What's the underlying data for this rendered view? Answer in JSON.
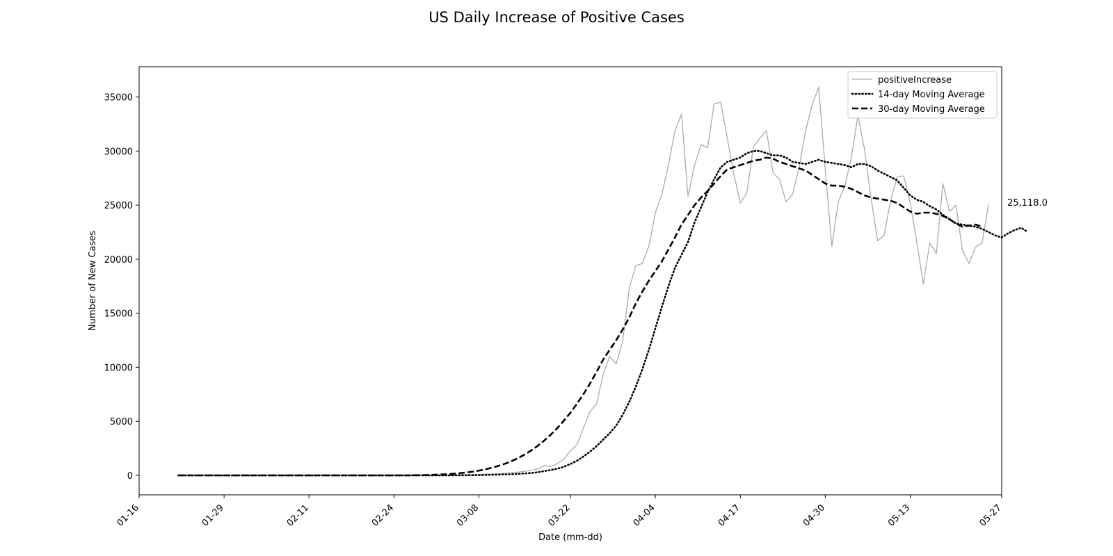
{
  "chart_data": {
    "type": "line",
    "title": "US Daily Increase of Positive Cases",
    "xlabel": "Date (mm-dd)",
    "ylabel": "Number of New Cases",
    "x_start": "01-22",
    "x_step_days": 1,
    "xlim": [
      "01-16",
      "05-27"
    ],
    "ylim": [
      -1800,
      37800
    ],
    "xticks": [
      "01-16",
      "01-29",
      "02-11",
      "02-24",
      "03-08",
      "03-22",
      "04-04",
      "04-17",
      "04-30",
      "05-13",
      "05-27"
    ],
    "yticks": [
      0,
      5000,
      10000,
      15000,
      20000,
      25000,
      30000,
      35000
    ],
    "grid": false,
    "legend_position": "top-right",
    "end_annotation": "25,118.0",
    "series": [
      {
        "name": "positiveIncrease",
        "style": "solid",
        "color": "#aaaaaa",
        "values": [
          0,
          0,
          0,
          0,
          0,
          0,
          0,
          0,
          0,
          0,
          0,
          0,
          0,
          0,
          0,
          0,
          0,
          0,
          0,
          0,
          0,
          0,
          0,
          0,
          0,
          0,
          0,
          0,
          0,
          0,
          0,
          0,
          0,
          0,
          0,
          0,
          0,
          0,
          0,
          0,
          0,
          0,
          20,
          30,
          40,
          60,
          80,
          100,
          130,
          160,
          200,
          250,
          300,
          380,
          450,
          600,
          900,
          800,
          1100,
          1500,
          2300,
          2800,
          4400,
          5900,
          6600,
          9300,
          11000,
          10300,
          12400,
          17300,
          19400,
          19600,
          21200,
          24300,
          26000,
          28700,
          31900,
          33400,
          25800,
          28700,
          30600,
          30300,
          34400,
          34500,
          31200,
          27900,
          25200,
          26100,
          30400,
          31200,
          31900,
          28000,
          27400,
          25300,
          26000,
          28500,
          31900,
          34300,
          35900,
          28300,
          21200,
          25300,
          26800,
          29400,
          33300,
          30200,
          25700,
          21700,
          22200,
          25400,
          27600,
          27700,
          25200,
          21600,
          17700,
          21500,
          20500,
          27000,
          24400,
          25000,
          20800,
          19600,
          21100,
          21500,
          25118
        ]
      },
      {
        "name": "14-day Moving Average",
        "style": "dotted",
        "color": "#000000",
        "values": [
          0,
          0,
          0,
          0,
          0,
          0,
          0,
          0,
          0,
          0,
          0,
          0,
          0,
          0,
          0,
          0,
          0,
          0,
          0,
          0,
          0,
          0,
          0,
          0,
          0,
          0,
          0,
          0,
          0,
          0,
          0,
          0,
          0,
          0,
          0,
          0,
          0,
          0,
          0,
          0,
          0,
          0,
          5,
          10,
          15,
          20,
          30,
          40,
          55,
          70,
          90,
          110,
          140,
          180,
          220,
          290,
          400,
          500,
          620,
          800,
          1050,
          1350,
          1750,
          2200,
          2700,
          3300,
          3900,
          4600,
          5600,
          6800,
          8200,
          9800,
          11600,
          13600,
          15600,
          17500,
          19200,
          20400,
          21600,
          23400,
          24800,
          26200,
          27400,
          28500,
          29000,
          29200,
          29400,
          29800,
          30000,
          30000,
          29800,
          29600,
          29600,
          29400,
          29000,
          28900,
          28800,
          29000,
          29200,
          29000,
          28900,
          28800,
          28700,
          28500,
          28800,
          28800,
          28600,
          28200,
          27900,
          27600,
          27300,
          26600,
          25900,
          25500,
          25300,
          24900,
          24600,
          24100,
          23700,
          23300,
          23200,
          23100,
          23000,
          22800,
          22500,
          22200,
          22000,
          22400,
          22700,
          22900,
          22500
        ]
      },
      {
        "name": "30-day Moving Average",
        "style": "dashed",
        "color": "#000000",
        "values": [
          0,
          0,
          0,
          0,
          0,
          0,
          0,
          0,
          0,
          0,
          0,
          0,
          0,
          0,
          0,
          0,
          0,
          0,
          0,
          0,
          0,
          0,
          0,
          0,
          0,
          0,
          0,
          0,
          0,
          0,
          0,
          0,
          0,
          0,
          0,
          0,
          10,
          20,
          30,
          50,
          80,
          110,
          150,
          200,
          260,
          340,
          440,
          560,
          710,
          880,
          1080,
          1320,
          1600,
          1930,
          2300,
          2730,
          3220,
          3770,
          4380,
          5060,
          5800,
          6620,
          7520,
          8500,
          9560,
          10700,
          11600,
          12500,
          13500,
          14600,
          15900,
          17000,
          18000,
          18900,
          19800,
          20900,
          22000,
          23200,
          24100,
          25000,
          25700,
          26300,
          27000,
          27700,
          28300,
          28500,
          28700,
          28900,
          29100,
          29200,
          29400,
          29300,
          29000,
          28800,
          28600,
          28400,
          28200,
          27800,
          27400,
          27000,
          26800,
          26800,
          26700,
          26500,
          26200,
          25900,
          25700,
          25600,
          25500,
          25400,
          25200,
          24800,
          24400,
          24200,
          24300,
          24300,
          24200,
          24000,
          23700,
          23300,
          23000,
          23100,
          23200,
          23000
        ]
      }
    ]
  }
}
